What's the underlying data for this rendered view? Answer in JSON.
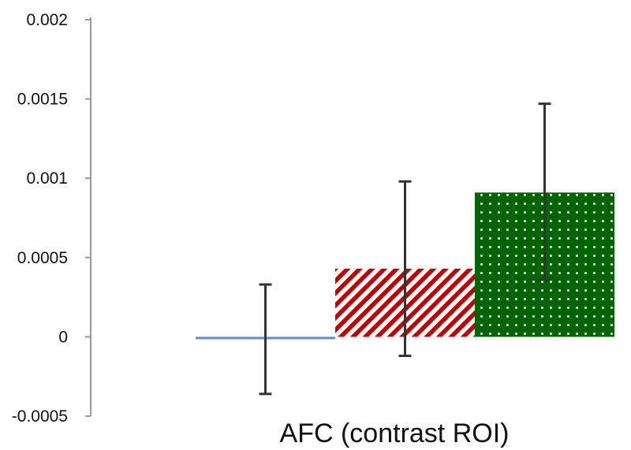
{
  "chart_data": {
    "type": "bar",
    "categories": [
      "AFC (contrast ROI)"
    ],
    "xlabel": "AFC (contrast ROI)",
    "ylabel": "",
    "title": "",
    "ylim": [
      -0.0005,
      0.002
    ],
    "yticks": [
      "0.002",
      "0.0015",
      "0.001",
      "0.0005",
      "0",
      "-0.0005"
    ],
    "grid": false,
    "legend": "none",
    "series": [
      {
        "value": -1.5e-05,
        "error_low": -0.00036,
        "error_high": 0.00033,
        "color": "#5b8fd6",
        "pattern": "solid"
      },
      {
        "value": 0.00043,
        "error_low": -0.00012,
        "error_high": 0.00098,
        "color": "#c00000",
        "pattern": "diagonal-stripes"
      },
      {
        "value": 0.00091,
        "error_low": 0.00036,
        "error_high": 0.00147,
        "color": "#006400",
        "pattern": "white-dots"
      }
    ]
  }
}
